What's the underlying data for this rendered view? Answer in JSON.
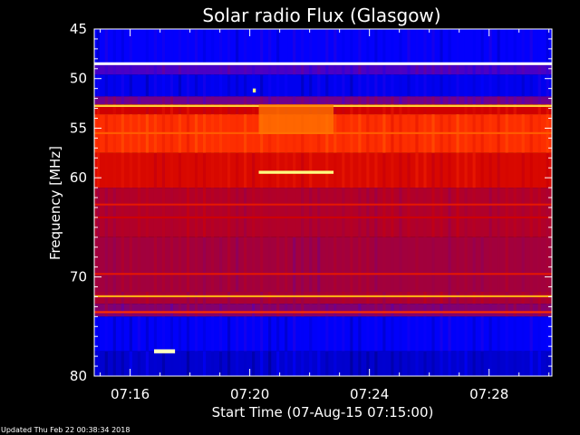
{
  "chart_data": {
    "type": "heatmap",
    "title": "Solar radio Flux (Glasgow)",
    "ylabel": "Frequency [MHz]",
    "xlabel": "Start Time (07-Aug-15 07:15:00)",
    "y_axis": {
      "range": [
        45,
        80
      ],
      "tick_values": [
        45,
        50,
        55,
        60,
        70,
        80
      ],
      "tick_labels": [
        "45",
        "50",
        "55",
        "60",
        "70",
        "80"
      ],
      "minor_tick_values": [
        46,
        47,
        48,
        49,
        51,
        52,
        53,
        54,
        56,
        57,
        58,
        59,
        61,
        62,
        63,
        64,
        65,
        66,
        67,
        68,
        69,
        71,
        72,
        73,
        74,
        75,
        76,
        77,
        78,
        79
      ]
    },
    "x_axis": {
      "unit": "minutes after 07:15:00",
      "range_minutes": [
        -0.2,
        15.1
      ],
      "tick_values_minutes": [
        1,
        5,
        9,
        13
      ],
      "tick_labels": [
        "07:16",
        "07:20",
        "07:24",
        "07:28"
      ]
    },
    "colormap": [
      "#00007a",
      "#0000ff",
      "#5000c0",
      "#a00040",
      "#d00000",
      "#ff3000",
      "#ff9000",
      "#ffff60",
      "#ffffff"
    ],
    "background_bands": [
      {
        "from": 45.0,
        "to": 48.4,
        "level": 0.13
      },
      {
        "from": 48.4,
        "to": 49.6,
        "level": 0.24
      },
      {
        "from": 49.6,
        "to": 51.8,
        "level": 0.11
      },
      {
        "from": 51.8,
        "to": 52.6,
        "level": 0.3
      },
      {
        "from": 52.6,
        "to": 53.6,
        "level": 0.5
      },
      {
        "from": 53.6,
        "to": 57.5,
        "level": 0.62
      },
      {
        "from": 57.5,
        "to": 61.0,
        "level": 0.52
      },
      {
        "from": 61.0,
        "to": 66.0,
        "level": 0.42
      },
      {
        "from": 66.0,
        "to": 71.5,
        "level": 0.38
      },
      {
        "from": 71.5,
        "to": 72.7,
        "level": 0.4
      },
      {
        "from": 72.7,
        "to": 74.0,
        "level": 0.33
      },
      {
        "from": 74.0,
        "to": 77.5,
        "level": 0.12
      },
      {
        "from": 77.5,
        "to": 80.0,
        "level": 0.08
      }
    ],
    "bright_lines": [
      {
        "freq": 48.5,
        "level": 1.0,
        "width_mhz": 0.28
      },
      {
        "freq": 52.75,
        "level": 0.82,
        "width_mhz": 0.22
      },
      {
        "freq": 71.95,
        "level": 0.78,
        "width_mhz": 0.2
      },
      {
        "freq": 55.5,
        "level": 0.68,
        "width_mhz": 0.2
      },
      {
        "freq": 62.7,
        "level": 0.56,
        "width_mhz": 0.18
      },
      {
        "freq": 64.0,
        "level": 0.5,
        "width_mhz": 0.18
      },
      {
        "freq": 69.7,
        "level": 0.56,
        "width_mhz": 0.18
      },
      {
        "freq": 73.55,
        "level": 0.62,
        "width_mhz": 0.2
      }
    ],
    "events": [
      {
        "label": "flux enhancement",
        "t_start_minutes": 5.3,
        "t_end_minutes": 7.8,
        "f_low": 52.6,
        "f_high": 55.6,
        "level": 0.72
      },
      {
        "label": "narrowband emission",
        "t_start_minutes": 5.3,
        "t_end_minutes": 7.8,
        "f_low": 59.3,
        "f_high": 59.6,
        "level": 0.9
      },
      {
        "label": "spot",
        "t_start_minutes": 5.1,
        "t_end_minutes": 5.2,
        "f_low": 51.0,
        "f_high": 51.4,
        "level": 0.9
      },
      {
        "label": "spot",
        "t_start_minutes": 1.8,
        "t_end_minutes": 2.5,
        "f_low": 77.3,
        "f_high": 77.7,
        "level": 0.95
      }
    ],
    "footer": "Updated Thu Feb 22 00:38:34 2018"
  }
}
